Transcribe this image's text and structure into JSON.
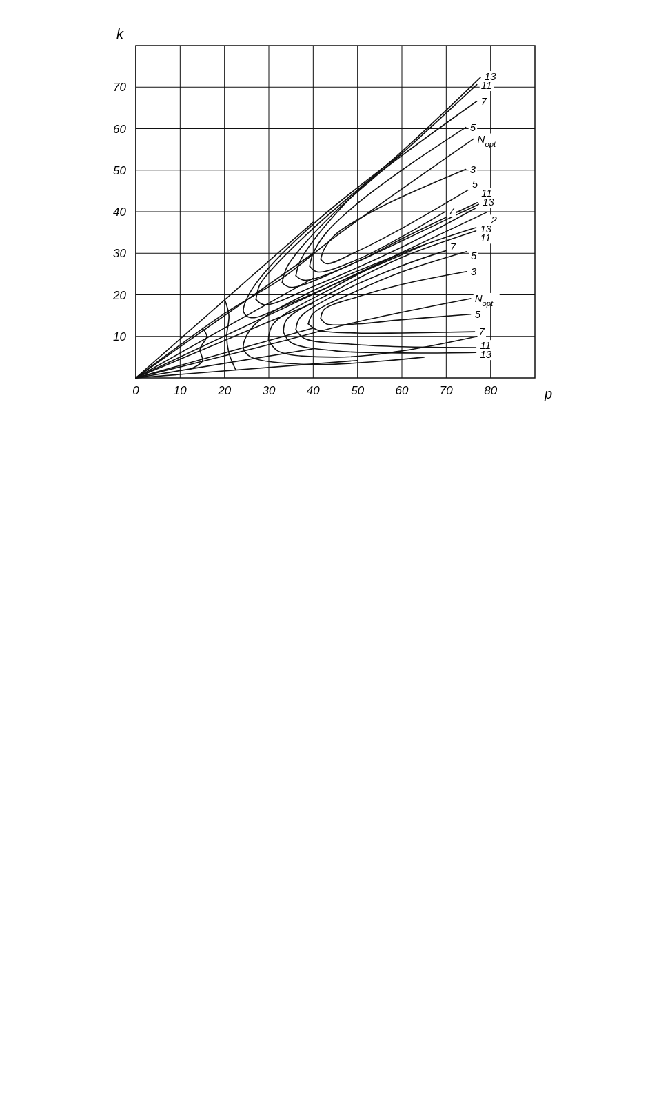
{
  "chart_data": {
    "type": "line",
    "xlabel": "p",
    "ylabel": "k",
    "xlim": [
      0,
      90
    ],
    "ylim": [
      0,
      80
    ],
    "xticks": [
      0,
      10,
      20,
      30,
      40,
      50,
      60,
      70,
      80
    ],
    "yticks": [
      10,
      20,
      30,
      40,
      50,
      60,
      70
    ],
    "grid": true,
    "marker": "none",
    "line_style": "solid",
    "color": "#111111",
    "series": [
      {
        "name": "13",
        "x": [
          27.1,
          28,
          31,
          40,
          60,
          77.7
        ],
        "values": [
          18.9,
          22.5,
          26.5,
          36,
          54.5,
          72.3
        ]
      },
      {
        "name": "11",
        "x": [
          33,
          34,
          37,
          45,
          60,
          76.9
        ],
        "values": [
          22.9,
          26.5,
          31,
          40,
          54,
          70.6
        ]
      },
      {
        "name": "7",
        "x": [
          36.1,
          37,
          40,
          50,
          60,
          76.9
        ],
        "values": [
          24.6,
          28,
          33,
          45,
          53.5,
          66.6
        ]
      },
      {
        "name": "5",
        "x": [
          39.2,
          40,
          43,
          50,
          60,
          74.4
        ],
        "values": [
          26.9,
          30,
          35,
          42,
          50,
          60.3
        ]
      },
      {
        "name": "N$_{opt}$",
        "x": [
          0,
          20,
          33,
          45,
          76.1
        ],
        "values": [
          0,
          15.5,
          24,
          34,
          57.5
        ]
      },
      {
        "name": "3",
        "x": [
          41.7,
          42.5,
          45,
          55,
          74.4
        ],
        "values": [
          28.6,
          31,
          34.5,
          41,
          50.2
        ]
      },
      {
        "name": "5",
        "x": [
          41.7,
          43,
          50,
          60,
          74.9
        ],
        "values": [
          28.6,
          27.5,
          30.5,
          36,
          45.2
        ]
      },
      {
        "name": "11",
        "x": [
          36.1,
          38,
          50,
          60,
          77
        ],
        "values": [
          24.6,
          23.5,
          28,
          33.5,
          42.2
        ]
      },
      {
        "name": "7",
        "x": [
          39.2,
          41,
          50,
          60,
          69.6
        ],
        "values": [
          26.9,
          25.5,
          28.5,
          34,
          39.9
        ]
      },
      {
        "name": "13",
        "x": [
          33,
          35,
          50,
          60,
          77.3
        ],
        "values": [
          22.9,
          21.8,
          28,
          33,
          41.8
        ]
      },
      {
        "name": "2",
        "x": [
          0,
          79.2
        ],
        "values": [
          0,
          39.9
        ]
      },
      {
        "x": [
          27.1,
          29,
          40,
          60,
          76.5
        ],
        "values": [
          18.9,
          17.6,
          22,
          31.5,
          40.8
        ]
      },
      {
        "x": [
          60,
          40,
          28,
          25,
          24.3,
          26,
          35,
          50,
          65
        ],
        "values": [
          54,
          37,
          24,
          19,
          15.9,
          14.5,
          18,
          25,
          32
        ]
      },
      {
        "name": "13",
        "x": [
          29.9,
          31,
          45,
          60,
          76.7
        ],
        "values": [
          9.3,
          13,
          22,
          30,
          36.2
        ]
      },
      {
        "name": "11",
        "x": [
          33.3,
          34,
          45,
          60,
          76.7
        ],
        "values": [
          11,
          14,
          21,
          29,
          35.4
        ]
      },
      {
        "name": "7",
        "x": [
          36.1,
          37,
          45,
          60,
          69.9
        ],
        "values": [
          11.6,
          14.5,
          20,
          27,
          30.6
        ]
      },
      {
        "name": "5",
        "x": [
          38.9,
          40,
          50,
          60,
          74.6
        ],
        "values": [
          13,
          15.5,
          21,
          25.5,
          30.4
        ]
      },
      {
        "name": "3",
        "x": [
          41.7,
          42.5,
          50,
          60,
          74.6
        ],
        "values": [
          14.3,
          16.5,
          19.5,
          22.5,
          25.6
        ]
      },
      {
        "name": "N$_{opt}$",
        "x": [
          0,
          30,
          50,
          75.5
        ],
        "values": [
          0,
          8,
          13.5,
          19.1
        ]
      },
      {
        "name": "5",
        "x": [
          41.7,
          43,
          50,
          60,
          75.5
        ],
        "values": [
          14.3,
          13,
          13,
          14,
          15.3
        ]
      },
      {
        "name": "7",
        "x": [
          38.9,
          41,
          50,
          60,
          76.4
        ],
        "values": [
          13,
          11.5,
          10.8,
          10.8,
          11.1
        ]
      },
      {
        "name": "11",
        "x": [
          36.1,
          38,
          50,
          60,
          76.7
        ],
        "values": [
          11.6,
          9.5,
          8,
          7.5,
          7.3
        ]
      },
      {
        "name": "13",
        "x": [
          33.3,
          35,
          45,
          60,
          76.7
        ],
        "values": [
          11,
          8.5,
          6.5,
          6,
          6.1
        ]
      },
      {
        "x": [
          29.9,
          32,
          45,
          60,
          77
        ],
        "values": [
          9.3,
          6.5,
          5,
          6.5,
          10
        ]
      },
      {
        "x": [
          60,
          40,
          27,
          24.5,
          24.3,
          26,
          40,
          65
        ],
        "values": [
          30,
          21,
          13,
          9,
          7,
          5,
          3.2,
          5
        ]
      },
      {
        "x": [
          0,
          40
        ],
        "values": [
          0,
          37.5
        ]
      },
      {
        "x": [
          0,
          40
        ],
        "values": [
          0,
          30
        ]
      },
      {
        "x": [
          0,
          40
        ],
        "values": [
          0,
          24
        ]
      },
      {
        "x": [
          0,
          40
        ],
        "values": [
          0,
          18
        ]
      },
      {
        "x": [
          0,
          40
        ],
        "values": [
          0,
          12
        ]
      },
      {
        "x": [
          0,
          40
        ],
        "values": [
          0,
          7
        ]
      },
      {
        "x": [
          0,
          50
        ],
        "values": [
          0,
          4.2
        ]
      },
      {
        "x": [
          20,
          21,
          20.5,
          21,
          22.5
        ],
        "values": [
          19,
          15,
          10,
          6,
          2
        ]
      },
      {
        "x": [
          15,
          16,
          14.5,
          15,
          12
        ],
        "values": [
          12,
          10,
          7,
          4,
          2
        ]
      }
    ]
  }
}
